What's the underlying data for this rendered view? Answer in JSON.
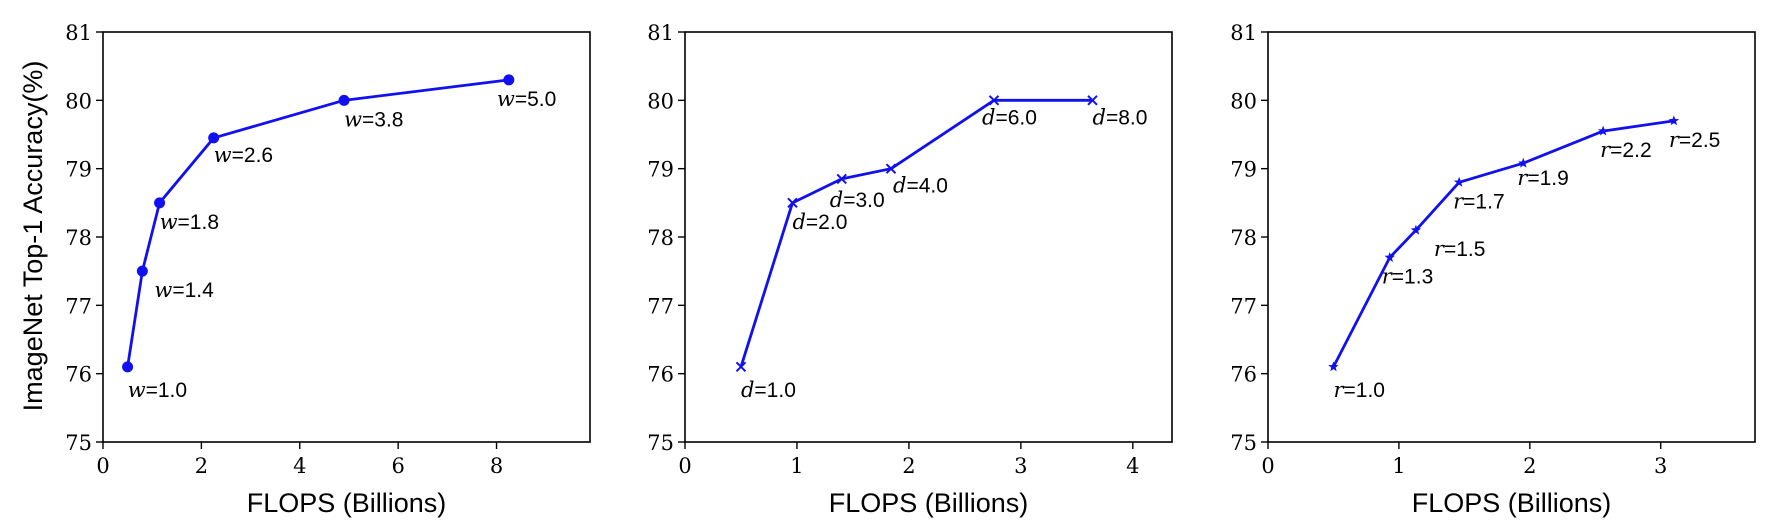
{
  "figure": {
    "ylabel": "ImageNet Top-1 Accuracy(%)"
  },
  "chart_data": [
    {
      "type": "line",
      "title": "",
      "xlabel": "FLOPS (Billions)",
      "ylabel": "ImageNet Top-1 Accuracy(%)",
      "xlim": [
        0,
        9.9
      ],
      "ylim": [
        75,
        81
      ],
      "xticks": [
        "0",
        "2",
        "4",
        "6",
        "8"
      ],
      "yticks": [
        "75",
        "76",
        "77",
        "78",
        "79",
        "80",
        "81"
      ],
      "grid": false,
      "marker": "circle",
      "color": "#1010f0",
      "points": [
        {
          "x": 0.5,
          "y": 76.1,
          "var": "w",
          "label": "=1.0"
        },
        {
          "x": 0.8,
          "y": 77.5,
          "var": "w",
          "label": "=1.4"
        },
        {
          "x": 1.15,
          "y": 78.5,
          "var": "w",
          "label": "=1.8"
        },
        {
          "x": 2.25,
          "y": 79.45,
          "var": "w",
          "label": "=2.6"
        },
        {
          "x": 4.9,
          "y": 80.0,
          "var": "w",
          "label": "=3.8"
        },
        {
          "x": 8.25,
          "y": 80.3,
          "var": "w",
          "label": "=5.0"
        }
      ]
    },
    {
      "type": "line",
      "title": "",
      "xlabel": "FLOPS (Billions)",
      "ylabel": "",
      "xlim": [
        0,
        4.35
      ],
      "ylim": [
        75,
        81
      ],
      "xticks": [
        "0",
        "1",
        "2",
        "3",
        "4"
      ],
      "yticks": [
        "75",
        "76",
        "77",
        "78",
        "79",
        "80",
        "81"
      ],
      "grid": false,
      "marker": "x",
      "color": "#1010f0",
      "points": [
        {
          "x": 0.5,
          "y": 76.1,
          "var": "d",
          "label": "=1.0"
        },
        {
          "x": 0.96,
          "y": 78.5,
          "var": "d",
          "label": "=2.0"
        },
        {
          "x": 1.4,
          "y": 78.85,
          "var": "d",
          "label": "=3.0"
        },
        {
          "x": 1.84,
          "y": 79.0,
          "var": "d",
          "label": "=4.0"
        },
        {
          "x": 2.76,
          "y": 80.0,
          "var": "d",
          "label": "=6.0"
        },
        {
          "x": 3.64,
          "y": 80.0,
          "var": "d",
          "label": "=8.0"
        }
      ]
    },
    {
      "type": "line",
      "title": "",
      "xlabel": "FLOPS (Billions)",
      "ylabel": "",
      "xlim": [
        0,
        3.72
      ],
      "ylim": [
        75,
        81
      ],
      "xticks": [
        "0",
        "1",
        "2",
        "3"
      ],
      "yticks": [
        "75",
        "76",
        "77",
        "78",
        "79",
        "80",
        "81"
      ],
      "grid": false,
      "marker": "star",
      "color": "#1010f0",
      "points": [
        {
          "x": 0.5,
          "y": 76.1,
          "var": "r",
          "label": "=1.0"
        },
        {
          "x": 0.93,
          "y": 77.7,
          "var": "r",
          "label": "=1.3"
        },
        {
          "x": 1.13,
          "y": 78.1,
          "var": "r",
          "label": "=1.5"
        },
        {
          "x": 1.46,
          "y": 78.8,
          "var": "r",
          "label": "=1.7"
        },
        {
          "x": 1.95,
          "y": 79.08,
          "var": "r",
          "label": "=1.9"
        },
        {
          "x": 2.56,
          "y": 79.55,
          "var": "r",
          "label": "=2.2"
        },
        {
          "x": 3.1,
          "y": 79.7,
          "var": "r",
          "label": "=2.5"
        }
      ]
    }
  ]
}
